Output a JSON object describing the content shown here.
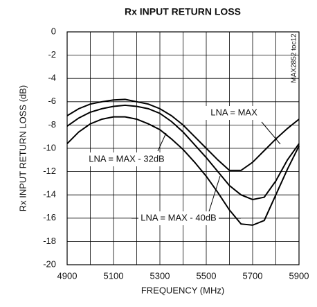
{
  "chart_data": {
    "type": "line",
    "title": "Rx INPUT RETURN LOSS",
    "xlabel": "FREQUENCY (MHz)",
    "ylabel": "Rx INPUT RETURN LOSS (dB)",
    "note": "MAX2852 toc12",
    "x": [
      4900,
      4950,
      5000,
      5050,
      5100,
      5150,
      5200,
      5250,
      5300,
      5350,
      5400,
      5450,
      5500,
      5550,
      5600,
      5650,
      5700,
      5750,
      5800,
      5850,
      5900
    ],
    "series": [
      {
        "name": "LNA = MAX",
        "color": "#000000",
        "values": [
          -7.2,
          -6.6,
          -6.2,
          -6.0,
          -5.85,
          -5.8,
          -6.0,
          -6.2,
          -6.6,
          -7.2,
          -8.0,
          -9.0,
          -10.0,
          -11.0,
          -11.9,
          -11.9,
          -11.2,
          -10.2,
          -9.2,
          -8.3,
          -7.5
        ]
      },
      {
        "name": "LNA = MAX - 32dB",
        "color": "#000000",
        "values": [
          -8.1,
          -7.4,
          -6.9,
          -6.6,
          -6.4,
          -6.3,
          -6.4,
          -6.6,
          -7.0,
          -7.7,
          -8.6,
          -9.7,
          -10.8,
          -12.0,
          -13.2,
          -14.0,
          -14.4,
          -14.2,
          -12.8,
          -11.0,
          -9.6
        ]
      },
      {
        "name": "LNA = MAX - 40dB",
        "color": "#000000",
        "values": [
          -9.6,
          -8.6,
          -7.9,
          -7.5,
          -7.3,
          -7.3,
          -7.5,
          -7.9,
          -8.4,
          -9.2,
          -10.1,
          -11.2,
          -12.4,
          -13.8,
          -15.3,
          -16.5,
          -16.6,
          -16.2,
          -14.0,
          -11.8,
          -9.8
        ]
      }
    ],
    "xlim": [
      4900,
      5900
    ],
    "xticks": [
      4900,
      5100,
      5300,
      5500,
      5700,
      5900
    ],
    "xgrid": [
      4900,
      5000,
      5100,
      5200,
      5300,
      5400,
      5500,
      5600,
      5700,
      5800,
      5900
    ],
    "ylim": [
      -20,
      0
    ],
    "yticks": [
      0,
      -2,
      -4,
      -6,
      -8,
      -10,
      -12,
      -14,
      -16,
      -18,
      -20
    ],
    "grid": true
  }
}
